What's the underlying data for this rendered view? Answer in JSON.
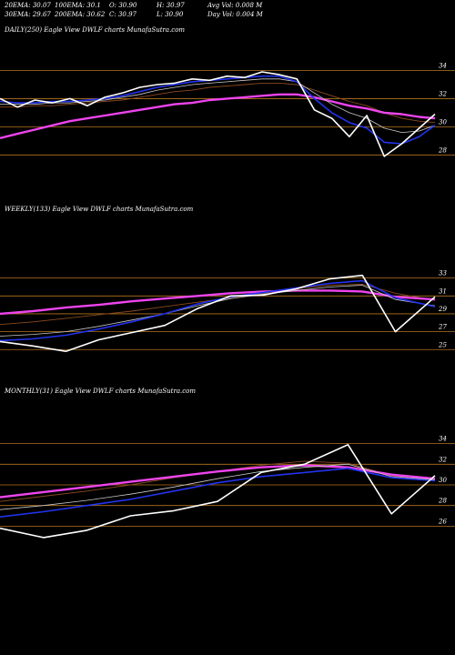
{
  "header": {
    "row1": {
      "c1": "20EMA: 30.07",
      "c2": "100EMA: 30.1",
      "c3": "O: 30.90",
      "c4": "H: 30.97",
      "c5": "Avg Vol: 0.008  M"
    },
    "row2": {
      "c1": "30EMA: 29.67",
      "c2": "200EMA: 30.62",
      "c3": "C: 30.97",
      "c4": "L: 30.90",
      "c5": "Day Vol: 0.004  M"
    }
  },
  "colors": {
    "background": "#000000",
    "price": "#ffffff",
    "ema20": "#2233ee",
    "ema200": "#ee44ee",
    "ema_thin_a": "#c8c8c8",
    "ema_thin_b": "#8a4a20",
    "gridline": "#b5741d"
  },
  "chart_data": [
    {
      "type": "line",
      "title": "DAILY(250) Eagle  View  DWLF charts MunafaSutra.com",
      "y_ticks": [
        34,
        32,
        30,
        28
      ],
      "ylim": [
        26.6,
        35.0
      ],
      "grid": true,
      "x": [
        0,
        10,
        20,
        30,
        40,
        50,
        60,
        70,
        80,
        90,
        100,
        110,
        120,
        130,
        140,
        150,
        160,
        170,
        180,
        190,
        200,
        210,
        220,
        230,
        240,
        249
      ],
      "series": [
        {
          "role": "price",
          "values": [
            32.0,
            31.4,
            31.9,
            31.7,
            32.0,
            31.5,
            32.1,
            32.4,
            32.8,
            33.0,
            33.1,
            33.4,
            33.3,
            33.6,
            33.5,
            33.9,
            33.7,
            33.4,
            31.2,
            30.6,
            29.3,
            30.8,
            27.9,
            28.8,
            29.9,
            30.9
          ]
        },
        {
          "role": "ema20",
          "values": [
            31.8,
            31.7,
            31.7,
            31.8,
            31.8,
            31.9,
            32.0,
            32.2,
            32.5,
            32.8,
            33.0,
            33.2,
            33.3,
            33.4,
            33.5,
            33.6,
            33.6,
            33.2,
            32.0,
            31.0,
            30.3,
            29.9,
            28.9,
            28.8,
            29.3,
            30.1
          ]
        },
        {
          "role": "ema_thin_a",
          "values": [
            31.6,
            31.6,
            31.6,
            31.7,
            31.7,
            31.8,
            31.9,
            32.1,
            32.3,
            32.6,
            32.8,
            33.0,
            33.1,
            33.2,
            33.3,
            33.4,
            33.4,
            33.2,
            32.4,
            31.6,
            31.0,
            30.6,
            29.9,
            29.6,
            29.7,
            30.1
          ]
        },
        {
          "role": "ema_thin_b",
          "values": [
            31.4,
            31.4,
            31.5,
            31.5,
            31.6,
            31.7,
            31.8,
            31.9,
            32.1,
            32.3,
            32.5,
            32.6,
            32.8,
            32.9,
            33.0,
            33.1,
            33.1,
            33.0,
            32.6,
            32.2,
            31.8,
            31.5,
            31.0,
            30.6,
            30.4,
            30.3
          ]
        },
        {
          "role": "ema200",
          "values": [
            29.2,
            29.5,
            29.8,
            30.1,
            30.4,
            30.6,
            30.8,
            31.0,
            31.2,
            31.4,
            31.6,
            31.7,
            31.9,
            32.0,
            32.1,
            32.2,
            32.3,
            32.3,
            32.1,
            31.8,
            31.5,
            31.3,
            31.0,
            30.9,
            30.7,
            30.6
          ]
        }
      ]
    },
    {
      "type": "line",
      "title": "WEEKLY(133) Eagle  View  DWLF charts MunafaSutra.com",
      "y_ticks": [
        33,
        31,
        29,
        27,
        25
      ],
      "ylim": [
        23.4,
        35.2
      ],
      "grid": true,
      "x": [
        0,
        10,
        20,
        30,
        40,
        50,
        60,
        70,
        80,
        90,
        100,
        110,
        120,
        132
      ],
      "series": [
        {
          "role": "price",
          "values": [
            25.9,
            25.4,
            24.8,
            26.1,
            26.9,
            27.7,
            29.6,
            31.0,
            31.1,
            31.8,
            32.9,
            33.3,
            27.0,
            30.9
          ]
        },
        {
          "role": "ema20",
          "values": [
            26.0,
            26.2,
            26.6,
            27.3,
            28.1,
            29.0,
            30.1,
            30.9,
            31.4,
            31.9,
            32.4,
            32.7,
            30.8,
            29.8
          ]
        },
        {
          "role": "ema_thin_a",
          "values": [
            26.5,
            26.7,
            27.0,
            27.6,
            28.3,
            29.0,
            29.9,
            30.7,
            31.2,
            31.6,
            32.0,
            32.2,
            30.6,
            29.9
          ]
        },
        {
          "role": "ema_thin_b",
          "values": [
            27.8,
            28.1,
            28.5,
            28.9,
            29.3,
            29.8,
            30.3,
            30.8,
            31.3,
            31.8,
            32.2,
            32.3,
            31.3,
            30.5
          ]
        },
        {
          "role": "ema200",
          "values": [
            29.0,
            29.3,
            29.7,
            30.0,
            30.4,
            30.7,
            31.0,
            31.3,
            31.5,
            31.6,
            31.6,
            31.5,
            30.9,
            30.6
          ]
        }
      ]
    },
    {
      "type": "line",
      "title": "MONTHLY(31) Eagle  View  DWLF charts MunafaSutra.com",
      "y_ticks": [
        34,
        32,
        30,
        28,
        26
      ],
      "ylim": [
        24.8,
        35.2
      ],
      "grid": true,
      "x": [
        0,
        3,
        6,
        9,
        12,
        15,
        18,
        21,
        24,
        27,
        30
      ],
      "series": [
        {
          "role": "price",
          "values": [
            25.8,
            24.9,
            25.6,
            27.0,
            27.5,
            28.4,
            31.2,
            32.0,
            33.9,
            27.2,
            30.9
          ]
        },
        {
          "role": "ema20",
          "values": [
            26.9,
            27.4,
            28.0,
            28.6,
            29.4,
            30.2,
            30.8,
            31.2,
            31.6,
            30.7,
            30.4
          ]
        },
        {
          "role": "ema_thin_a",
          "values": [
            27.6,
            28.0,
            28.5,
            29.1,
            29.8,
            30.6,
            31.3,
            31.7,
            32.0,
            30.8,
            30.5
          ]
        },
        {
          "role": "ema_thin_b",
          "values": [
            28.4,
            28.9,
            29.4,
            30.0,
            30.7,
            31.3,
            31.9,
            32.3,
            32.1,
            30.9,
            30.4
          ]
        },
        {
          "role": "ema200",
          "values": [
            28.8,
            29.3,
            29.8,
            30.3,
            30.8,
            31.3,
            31.7,
            31.9,
            31.7,
            31.0,
            30.6
          ]
        }
      ]
    }
  ]
}
